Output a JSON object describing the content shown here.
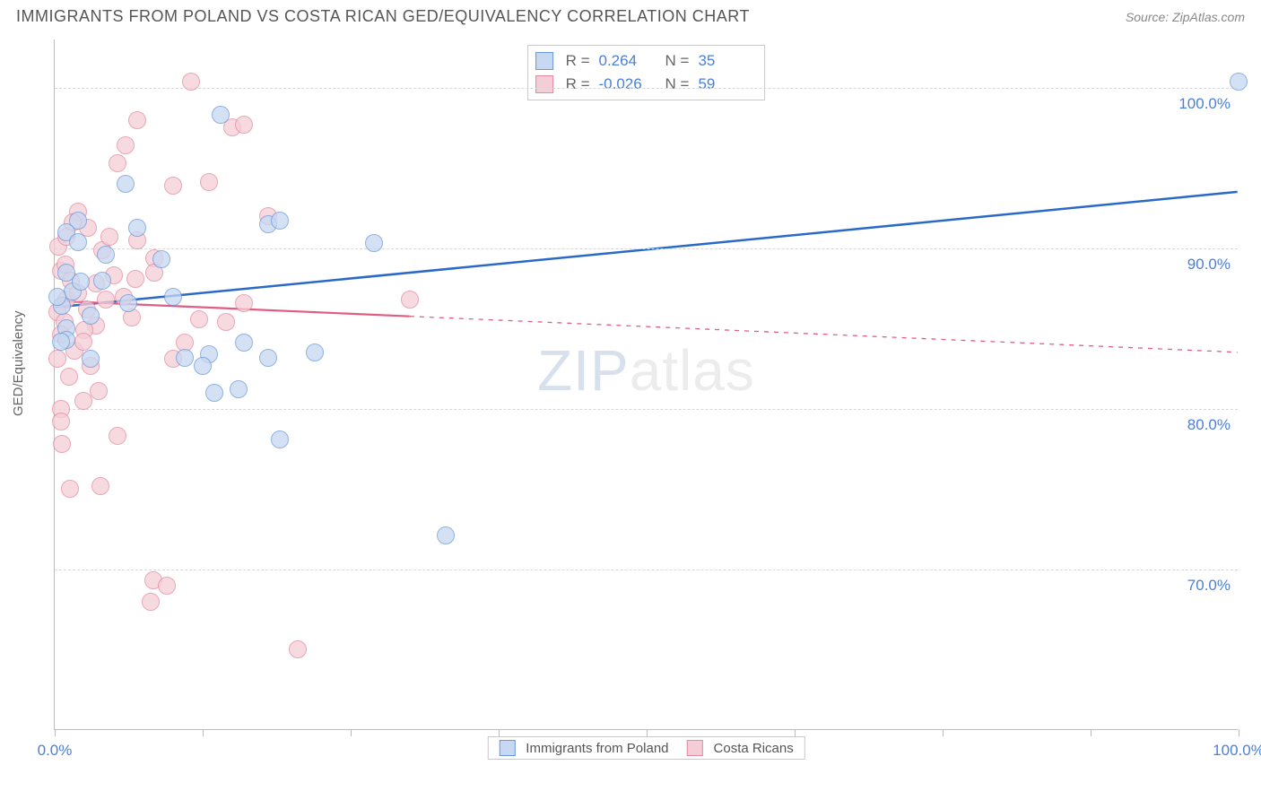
{
  "title": "IMMIGRANTS FROM POLAND VS COSTA RICAN GED/EQUIVALENCY CORRELATION CHART",
  "source": "Source: ZipAtlas.com",
  "watermark": {
    "part1": "ZIP",
    "part2": "atlas"
  },
  "chart": {
    "type": "scatter",
    "ylabel": "GED/Equivalency",
    "background_color": "#ffffff",
    "grid_color": "#d8d8d8",
    "axis_color": "#bbbbbb",
    "tick_label_color": "#4a7fd8",
    "xlim": [
      0,
      100
    ],
    "ylim": [
      60,
      103
    ],
    "x_ticks": [
      0,
      12.5,
      25,
      37.5,
      50,
      62.5,
      75,
      87.5,
      100
    ],
    "x_tick_labels": {
      "0": "0.0%",
      "100": "100.0%"
    },
    "y_ticks": [
      70,
      80,
      90,
      100
    ],
    "y_tick_labels": {
      "70": "70.0%",
      "80": "80.0%",
      "90": "90.0%",
      "100": "100.0%"
    },
    "marker_radius": 10,
    "marker_border_width": 1.5,
    "series": [
      {
        "key": "poland",
        "label": "Immigrants from Poland",
        "fill": "#c6d8f2",
        "stroke": "#6a99d8",
        "stats": {
          "R": "0.264",
          "N": "35"
        },
        "trend": {
          "x1": 0,
          "y1": 86.3,
          "x2": 100,
          "y2": 93.5,
          "solid_until_x": 100,
          "color": "#2b69c9",
          "width": 2.5
        },
        "points": [
          {
            "x": 100,
            "y": 100.4
          },
          {
            "x": 14,
            "y": 98.3
          },
          {
            "x": 27,
            "y": 90.3
          },
          {
            "x": 6,
            "y": 94.0
          },
          {
            "x": 2,
            "y": 91.7
          },
          {
            "x": 1,
            "y": 91.0
          },
          {
            "x": 7,
            "y": 91.3
          },
          {
            "x": 9,
            "y": 89.3
          },
          {
            "x": 1,
            "y": 88.5
          },
          {
            "x": 4,
            "y": 88.0
          },
          {
            "x": 1.5,
            "y": 87.3
          },
          {
            "x": 10,
            "y": 87.0
          },
          {
            "x": 0.6,
            "y": 86.4
          },
          {
            "x": 3,
            "y": 85.8
          },
          {
            "x": 1,
            "y": 85.0
          },
          {
            "x": 1,
            "y": 84.3
          },
          {
            "x": 18,
            "y": 91.5
          },
          {
            "x": 19,
            "y": 91.7
          },
          {
            "x": 16,
            "y": 84.1
          },
          {
            "x": 18,
            "y": 83.2
          },
          {
            "x": 22,
            "y": 83.5
          },
          {
            "x": 11,
            "y": 83.2
          },
          {
            "x": 13.5,
            "y": 81.0
          },
          {
            "x": 13,
            "y": 83.4
          },
          {
            "x": 3,
            "y": 83.1
          },
          {
            "x": 15.5,
            "y": 81.2
          },
          {
            "x": 12.5,
            "y": 82.7
          },
          {
            "x": 19,
            "y": 78.1
          },
          {
            "x": 33,
            "y": 72.1
          },
          {
            "x": 0.5,
            "y": 84.2
          },
          {
            "x": 2.2,
            "y": 87.9
          },
          {
            "x": 6.2,
            "y": 86.6
          },
          {
            "x": 4.3,
            "y": 89.6
          },
          {
            "x": 2.0,
            "y": 90.4
          },
          {
            "x": 0.2,
            "y": 87.0
          }
        ]
      },
      {
        "key": "costarica",
        "label": "Costa Ricans",
        "fill": "#f5cdd6",
        "stroke": "#e28aa0",
        "stats": {
          "R": "-0.026",
          "N": "59"
        },
        "trend": {
          "x1": 0,
          "y1": 86.7,
          "x2": 100,
          "y2": 83.5,
          "solid_until_x": 30,
          "color": "#e05d82",
          "width": 2.2
        },
        "points": [
          {
            "x": 11.5,
            "y": 100.4
          },
          {
            "x": 7,
            "y": 98.0
          },
          {
            "x": 15,
            "y": 97.5
          },
          {
            "x": 16,
            "y": 97.7
          },
          {
            "x": 6,
            "y": 96.4
          },
          {
            "x": 5.3,
            "y": 95.3
          },
          {
            "x": 10,
            "y": 93.9
          },
          {
            "x": 13,
            "y": 94.1
          },
          {
            "x": 18,
            "y": 92.0
          },
          {
            "x": 2,
            "y": 92.3
          },
          {
            "x": 2.8,
            "y": 91.3
          },
          {
            "x": 1.5,
            "y": 91.6
          },
          {
            "x": 7,
            "y": 90.5
          },
          {
            "x": 8.4,
            "y": 89.4
          },
          {
            "x": 4,
            "y": 89.9
          },
          {
            "x": 8.4,
            "y": 88.5
          },
          {
            "x": 5,
            "y": 88.3
          },
          {
            "x": 3.5,
            "y": 87.8
          },
          {
            "x": 0.5,
            "y": 88.6
          },
          {
            "x": 4.3,
            "y": 86.8
          },
          {
            "x": 1,
            "y": 86.8
          },
          {
            "x": 0.2,
            "y": 86.0
          },
          {
            "x": 6.5,
            "y": 85.7
          },
          {
            "x": 0.8,
            "y": 85.4
          },
          {
            "x": 3.5,
            "y": 85.2
          },
          {
            "x": 14.5,
            "y": 85.4
          },
          {
            "x": 2.5,
            "y": 84.9
          },
          {
            "x": 0.5,
            "y": 84.6
          },
          {
            "x": 11,
            "y": 84.1
          },
          {
            "x": 16,
            "y": 86.6
          },
          {
            "x": 30,
            "y": 86.8
          },
          {
            "x": 3,
            "y": 82.7
          },
          {
            "x": 10,
            "y": 83.1
          },
          {
            "x": 1.2,
            "y": 82.0
          },
          {
            "x": 1.7,
            "y": 83.6
          },
          {
            "x": 2.4,
            "y": 84.2
          },
          {
            "x": 0.2,
            "y": 83.1
          },
          {
            "x": 3.7,
            "y": 81.1
          },
          {
            "x": 2.4,
            "y": 80.5
          },
          {
            "x": 0.5,
            "y": 80.0
          },
          {
            "x": 0.5,
            "y": 79.2
          },
          {
            "x": 0.6,
            "y": 77.8
          },
          {
            "x": 5.3,
            "y": 78.3
          },
          {
            "x": 1.3,
            "y": 75.0
          },
          {
            "x": 3.9,
            "y": 75.2
          },
          {
            "x": 8.3,
            "y": 69.3
          },
          {
            "x": 9.5,
            "y": 69.0
          },
          {
            "x": 8.1,
            "y": 68.0
          },
          {
            "x": 20.5,
            "y": 65.0
          },
          {
            "x": 0.9,
            "y": 89.0
          },
          {
            "x": 1.4,
            "y": 88.0
          },
          {
            "x": 2.0,
            "y": 87.2
          },
          {
            "x": 2.7,
            "y": 86.2
          },
          {
            "x": 0.3,
            "y": 90.1
          },
          {
            "x": 1.0,
            "y": 90.7
          },
          {
            "x": 5.8,
            "y": 87.0
          },
          {
            "x": 6.8,
            "y": 88.1
          },
          {
            "x": 4.6,
            "y": 90.7
          },
          {
            "x": 12.2,
            "y": 85.6
          }
        ]
      }
    ],
    "stat_legend_labels": {
      "R": "R =",
      "N": "N ="
    }
  }
}
